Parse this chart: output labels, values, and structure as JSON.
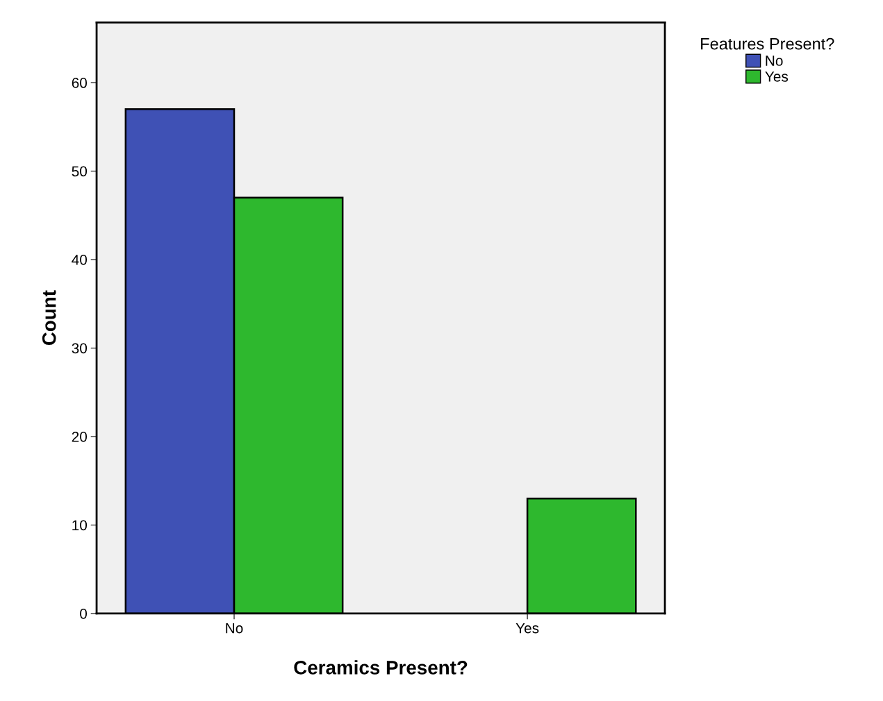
{
  "chart_data": {
    "type": "bar",
    "xlabel": "Ceramics Present?",
    "ylabel": "Count",
    "legend_title": "Features Present?",
    "categories": [
      "No",
      "Yes"
    ],
    "series": [
      {
        "name": "No",
        "color": "#3f51b5",
        "values": [
          57,
          null
        ]
      },
      {
        "name": "Yes",
        "color": "#2eb82e",
        "values": [
          47,
          13
        ]
      }
    ],
    "ylim": [
      0,
      66.8
    ],
    "yticks": [
      0,
      10,
      20,
      30,
      40,
      50,
      60
    ],
    "grid": false,
    "legend": "top right"
  }
}
